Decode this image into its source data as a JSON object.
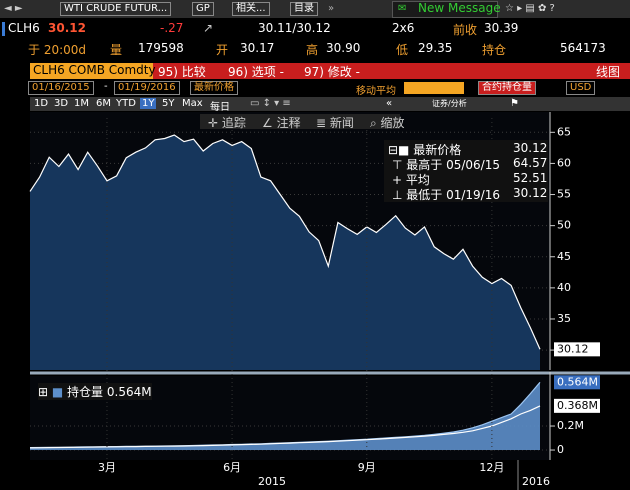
{
  "toolbar": {
    "security": "WTI CRUDE FUTUR...",
    "gp": "GP",
    "related": "相关...",
    "catalog": "目录",
    "message": "New Message"
  },
  "quote": {
    "ticker": "CLH6",
    "last": "30.12",
    "change": "-.27",
    "bid_ask": "30.11/30.12",
    "size": "2x6",
    "prev_label": "前收",
    "prev": "30.39",
    "time": "于 20:00d",
    "volume_label": "量",
    "volume": "179598",
    "open_label": "开",
    "open": "30.17",
    "high_label": "高",
    "high": "30.90",
    "low_label": "低",
    "low": "29.35",
    "oi_label": "持仓",
    "oi": "564173"
  },
  "menu": {
    "security": "CLH6 COMB Comdty",
    "items": [
      "95) 比较",
      "96) 选项 -",
      "97) 修改 -"
    ],
    "view": "线图"
  },
  "controls": {
    "start": "01/16/2015",
    "dash": "-",
    "end": "01/19/2016",
    "field": "最新价格",
    "ma": "移动平均",
    "oi": "合约持仓量",
    "currency": "USD",
    "periods": [
      "1D",
      "3D",
      "1M",
      "6M",
      "YTD",
      "1Y",
      "5Y",
      "Max"
    ],
    "freq": "每日",
    "analysis": "证券/分析",
    "tools": [
      "追踪",
      "注释",
      "新闻",
      "缩放"
    ]
  },
  "chart_data": [
    {
      "type": "area",
      "series": [
        {
          "name": "最新价格",
          "color": "#16365c",
          "values": [
            55.5,
            57.8,
            61,
            59.5,
            61.5,
            59,
            61.8,
            59.6,
            57.2,
            58,
            60.9,
            61.8,
            62.5,
            63.8,
            64,
            64.57,
            63.5,
            63.9,
            62,
            63.2,
            63.8,
            62.9,
            63.5,
            62.4,
            57.8,
            57.2,
            55,
            52.8,
            51.5,
            49,
            47.6,
            43.5,
            50.5,
            49.5,
            48.6,
            49.8,
            48.9,
            50.2,
            51.6,
            49.6,
            48.5,
            49.8,
            46.6,
            45.5,
            44.6,
            46.2,
            43.5,
            41.7,
            40.7,
            41.5,
            40.4,
            36.8,
            33.6,
            30.12
          ]
        }
      ],
      "stats": [
        {
          "label": "最高于 05/06/15",
          "value": 64.57
        },
        {
          "label": "平均",
          "value": 52.51
        },
        {
          "label": "最低于 01/19/16",
          "value": 30.12
        }
      ],
      "ylim": [
        26.8,
        67.3
      ],
      "yticks": [
        30,
        35,
        40,
        45,
        50,
        55,
        60,
        65
      ],
      "grid": true
    },
    {
      "type": "area",
      "categories": [
        null,
        null,
        null,
        null,
        null,
        null,
        null,
        null,
        "3月",
        null,
        null,
        null,
        null,
        null,
        null,
        null,
        null,
        null,
        null,
        null,
        null,
        "6月",
        null,
        null,
        null,
        null,
        null,
        null,
        null,
        null,
        null,
        null,
        null,
        null,
        null,
        "9月",
        null,
        null,
        null,
        null,
        null,
        null,
        null,
        null,
        null,
        null,
        null,
        null,
        "12月",
        null,
        null,
        null,
        null,
        null
      ],
      "year_labels": [
        "2015",
        "2016"
      ],
      "series": [
        {
          "name": "持仓量",
          "color": "#5d8fca",
          "values": [
            20000,
            21000,
            22000,
            23000,
            24000,
            25000,
            26000,
            27000,
            28000,
            29000,
            30000,
            31000,
            32000,
            33000,
            34000,
            35000,
            36000,
            38000,
            40000,
            42000,
            44000,
            46000,
            48000,
            50000,
            52000,
            55000,
            58000,
            61000,
            64000,
            67000,
            70000,
            74000,
            78000,
            82000,
            86000,
            90000,
            95000,
            100000,
            105000,
            110000,
            116000,
            122000,
            130000,
            140000,
            150000,
            165000,
            185000,
            210000,
            240000,
            270000,
            300000,
            380000,
            470000,
            564173
          ],
          "value_labels": [
            null,
            null,
            null,
            null,
            null,
            null,
            null,
            null,
            null,
            null,
            null,
            null,
            null,
            null,
            null,
            null,
            null,
            null,
            null,
            null,
            null,
            null,
            null,
            null,
            null,
            null,
            null,
            null,
            null,
            null,
            null,
            null,
            null,
            null,
            null,
            null,
            null,
            null,
            null,
            null,
            null,
            null,
            null,
            null,
            null,
            null,
            null,
            null,
            null,
            null,
            null,
            null,
            null,
            "0.564M"
          ]
        },
        {
          "type": "line",
          "color": "#ffffff",
          "values": [
            18000,
            19000,
            20000,
            21000,
            22000,
            23000,
            24000,
            25000,
            26000,
            27000,
            28000,
            29000,
            30000,
            31000,
            32000,
            33000,
            34000,
            35000,
            37000,
            39000,
            41000,
            43000,
            45000,
            47000,
            49000,
            52000,
            55000,
            58000,
            61000,
            64000,
            67000,
            70000,
            74000,
            78000,
            82000,
            86000,
            90000,
            95000,
            100000,
            105000,
            110000,
            116000,
            122000,
            130000,
            138000,
            148000,
            160000,
            180000,
            200000,
            230000,
            260000,
            300000,
            330000,
            368000
          ],
          "value_labels": [
            null,
            null,
            null,
            null,
            null,
            null,
            null,
            null,
            null,
            null,
            null,
            null,
            null,
            null,
            null,
            null,
            null,
            null,
            null,
            null,
            null,
            null,
            null,
            null,
            null,
            null,
            null,
            null,
            null,
            null,
            null,
            null,
            null,
            null,
            null,
            null,
            null,
            null,
            null,
            null,
            null,
            null,
            null,
            null,
            null,
            null,
            null,
            null,
            null,
            null,
            null,
            null,
            null,
            "0.368M"
          ]
        }
      ],
      "ylim": [
        -83000,
        600000
      ],
      "yticks": [
        0,
        {
          "value": 200000,
          "label": "0.2M"
        }
      ],
      "grid": true
    }
  ]
}
